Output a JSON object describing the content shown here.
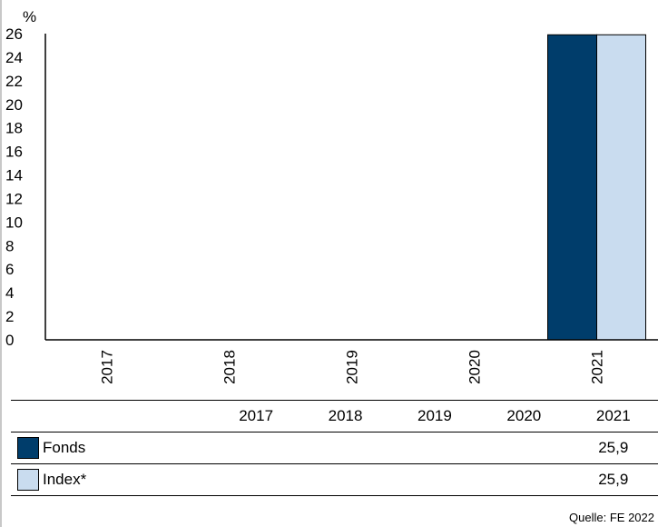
{
  "chart_data": {
    "type": "bar",
    "unit_label": "%",
    "categories": [
      "2017",
      "2018",
      "2019",
      "2020",
      "2021"
    ],
    "series": [
      {
        "name": "Fonds",
        "color": "#003d6b",
        "values": [
          null,
          null,
          null,
          null,
          25.9
        ]
      },
      {
        "name": "Index*",
        "color": "#c9dcef",
        "values": [
          null,
          null,
          null,
          null,
          25.9
        ]
      }
    ],
    "ylim": [
      0,
      26
    ],
    "yticks": [
      "0",
      "2",
      "4",
      "6",
      "8",
      "10",
      "12",
      "14",
      "16",
      "18",
      "20",
      "22",
      "24",
      "26"
    ],
    "grid": false,
    "legend": "table-below"
  },
  "table": {
    "years": [
      "2017",
      "2018",
      "2019",
      "2020",
      "2021"
    ],
    "rows": [
      {
        "label": "Fonds",
        "values": [
          "",
          "",
          "",
          "",
          "25,9"
        ]
      },
      {
        "label": "Index*",
        "values": [
          "",
          "",
          "",
          "",
          "25,9"
        ]
      }
    ]
  },
  "source": "Quelle: FE 2022"
}
